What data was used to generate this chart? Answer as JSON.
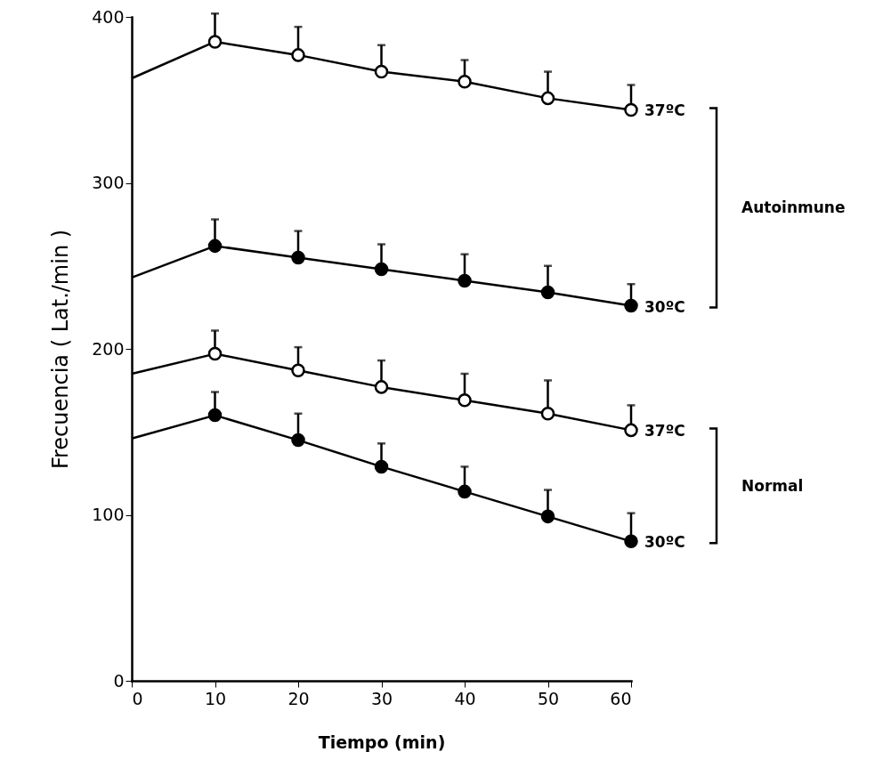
{
  "chart_data": {
    "type": "line",
    "xlabel": "Tiempo (min)",
    "ylabel": "Frecuencia ( Lat./min )",
    "x": [
      0,
      10,
      20,
      30,
      40,
      50,
      60
    ],
    "xlim": [
      0,
      60
    ],
    "xticks": [
      0,
      10,
      20,
      30,
      40,
      50,
      60
    ],
    "ylim": [
      0,
      400
    ],
    "yticks": [
      0,
      100,
      200,
      300,
      400
    ],
    "grid": false,
    "marker": "circle",
    "line_style": "solid",
    "annotations": [
      "Autoinmune",
      "Normal"
    ],
    "series": [
      {
        "name": "37ºC",
        "color": "#ffffff",
        "values": [
          363,
          385,
          377,
          367,
          361,
          351,
          344
        ],
        "errors": [
          null,
          [
            385,
            402
          ],
          [
            377,
            394
          ],
          [
            367,
            383
          ],
          [
            361,
            374
          ],
          [
            351,
            367
          ],
          [
            344,
            359
          ]
        ]
      },
      {
        "name": "30ºC",
        "color": "#000000",
        "values": [
          243,
          262,
          255,
          248,
          241,
          234,
          226
        ],
        "errors": [
          null,
          [
            262,
            278
          ],
          [
            255,
            271
          ],
          [
            248,
            263
          ],
          [
            241,
            257
          ],
          [
            234,
            250
          ],
          [
            226,
            239
          ]
        ]
      },
      {
        "name": "37ºC",
        "color": "#ffffff",
        "values": [
          185,
          197,
          187,
          177,
          169,
          161,
          151
        ],
        "errors": [
          null,
          [
            197,
            211
          ],
          [
            187,
            201
          ],
          [
            177,
            193
          ],
          [
            169,
            185
          ],
          [
            161,
            181
          ],
          [
            151,
            166
          ]
        ]
      },
      {
        "name": "30ºC",
        "color": "#000000",
        "values": [
          146,
          160,
          145,
          129,
          114,
          99,
          84
        ],
        "errors": [
          null,
          [
            160,
            174
          ],
          [
            145,
            161
          ],
          [
            129,
            143
          ],
          [
            114,
            129
          ],
          [
            99,
            115
          ],
          [
            84,
            101
          ]
        ]
      }
    ]
  }
}
